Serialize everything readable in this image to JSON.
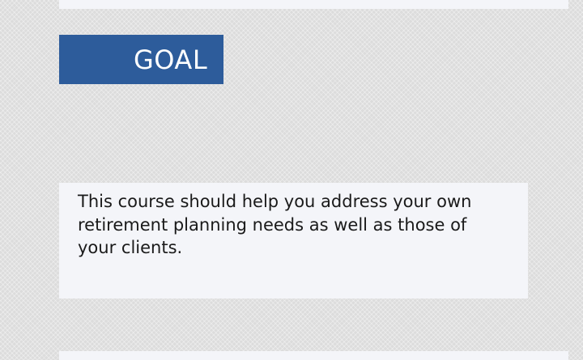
{
  "goal_section": {
    "heading": "GOAL",
    "body": "This course should help you address your own retirement planning needs as well as those of your clients."
  }
}
